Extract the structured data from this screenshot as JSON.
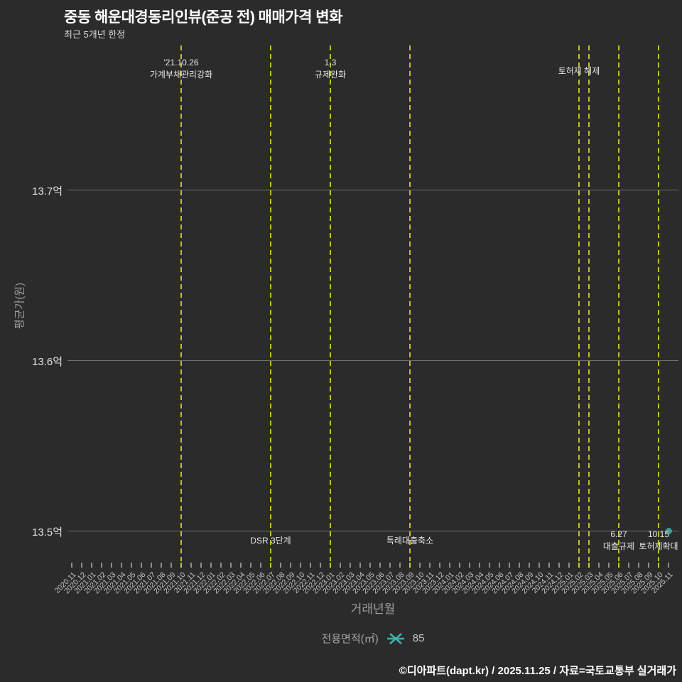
{
  "title": "중동 해운대경동리인뷰(준공 전) 매매가격 변화",
  "subtitle": "최근 5개년 한정",
  "footer": "©디아파트(dapt.kr) / 2025.11.25 / 자료=국토교통부 실거래가",
  "colors": {
    "background": "#2b2b2b",
    "grid": "#6e6e6e",
    "event_line": "#b9c22a",
    "marker": "#3fb1ac",
    "title_text": "#ffffff",
    "tick_text": "#c6c6c6"
  },
  "chart_data": {
    "type": "scatter",
    "title": "중동 해운대경동리인뷰(준공 전) 매매가격 변화",
    "subtitle": "최근 5개년 한정",
    "xlabel": "거래년월",
    "ylabel": "평균가(원)",
    "grid": "horizontal",
    "ylim": [
      13.48,
      13.79
    ],
    "yticks": [
      {
        "label": "13.7억",
        "value": 13.7
      },
      {
        "label": "13.6억",
        "value": 13.6
      },
      {
        "label": "13.5억",
        "value": 13.5
      }
    ],
    "categories": [
      "2020.11",
      "2020.12",
      "2021.01",
      "2021.02",
      "2021.03",
      "2021.04",
      "2021.05",
      "2021.06",
      "2021.07",
      "2021.08",
      "2021.09",
      "2021.10",
      "2021.11",
      "2021.12",
      "2022.01",
      "2022.02",
      "2022.03",
      "2022.04",
      "2022.05",
      "2022.06",
      "2022.07",
      "2022.08",
      "2022.09",
      "2022.10",
      "2022.11",
      "2022.12",
      "2023.01",
      "2023.02",
      "2023.03",
      "2023.04",
      "2023.05",
      "2023.06",
      "2023.07",
      "2023.08",
      "2023.09",
      "2023.10",
      "2023.11",
      "2023.12",
      "2024.01",
      "2024.02",
      "2024.03",
      "2024.04",
      "2024.05",
      "2024.06",
      "2024.07",
      "2024.08",
      "2024.09",
      "2024.10",
      "2024.11",
      "2024.12",
      "2025.01",
      "2025.02",
      "2025.03",
      "2025.04",
      "2025.05",
      "2025.06",
      "2025.07",
      "2025.08",
      "2025.09",
      "2025.10",
      "2025.11"
    ],
    "series": [
      {
        "name": "85",
        "legend_group": "전용면적(㎡)",
        "marker": "star",
        "color": "#3fb1ac",
        "points": [
          {
            "x": "2025.11",
            "y": 13.5
          }
        ]
      }
    ],
    "annotations": [
      {
        "x": "2021.10",
        "position": "top",
        "lines": [
          "'21.10.26",
          "가계부채관리강화"
        ]
      },
      {
        "x": "2022.07",
        "position": "bottom",
        "lines": [
          "DSR 3단계"
        ]
      },
      {
        "x": "2023.01",
        "position": "top",
        "lines": [
          "1.3",
          "규제완화"
        ]
      },
      {
        "x": "2023.09",
        "position": "bottom",
        "lines": [
          "특례대출축소"
        ]
      },
      {
        "x": "2025.02",
        "position": "top",
        "lines": [
          "토허제 해제"
        ]
      },
      {
        "x": "2025.03",
        "position": "top",
        "lines": []
      },
      {
        "x": "2025.06",
        "position": "bottom",
        "lines": [
          "6.27",
          "대출규제"
        ]
      },
      {
        "x": "2025.10",
        "position": "bottom",
        "lines": [
          "10.15",
          "토허제확대"
        ]
      }
    ],
    "legend": {
      "label": "전용면적(㎡)",
      "value": "85",
      "position": "bottom-center"
    }
  }
}
